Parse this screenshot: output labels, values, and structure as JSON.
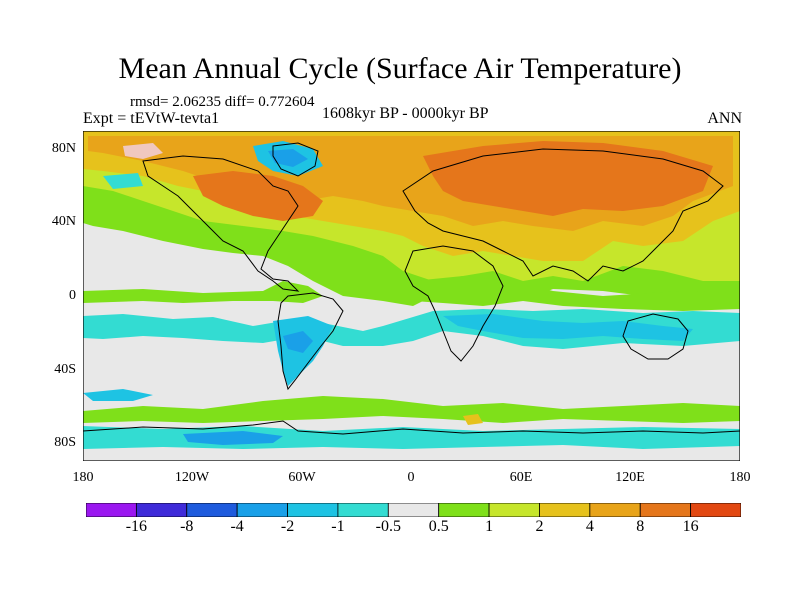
{
  "title": "Mean Annual Cycle (Surface Air Temperature)",
  "stats": "rmsd= 2.06235  diff= 0.772604",
  "experiment": "Expt = tEVtW-tevta1",
  "period": "1608kyr BP - 0000kyr BP",
  "season": "ANN",
  "map": {
    "lat_labels": [
      "80N",
      "40N",
      "0",
      "40S",
      "80S"
    ],
    "lon_labels": [
      "180",
      "120W",
      "60W",
      "0",
      "60E",
      "120E",
      "180"
    ]
  },
  "colorbar": {
    "labels": [
      "-16",
      "-8",
      "-4",
      "-2",
      "-1",
      "-0.5",
      "0.5",
      "1",
      "2",
      "4",
      "8",
      "16"
    ],
    "colors": [
      "#9b17f0",
      "#3f2bd9",
      "#1f5bdd",
      "#1aa0e8",
      "#1ec3e3",
      "#33dcd2",
      "#e8e8e8",
      "#7fe01a",
      "#c6e62b",
      "#e6c21c",
      "#e8a41a",
      "#e5761b",
      "#e24812"
    ]
  }
}
